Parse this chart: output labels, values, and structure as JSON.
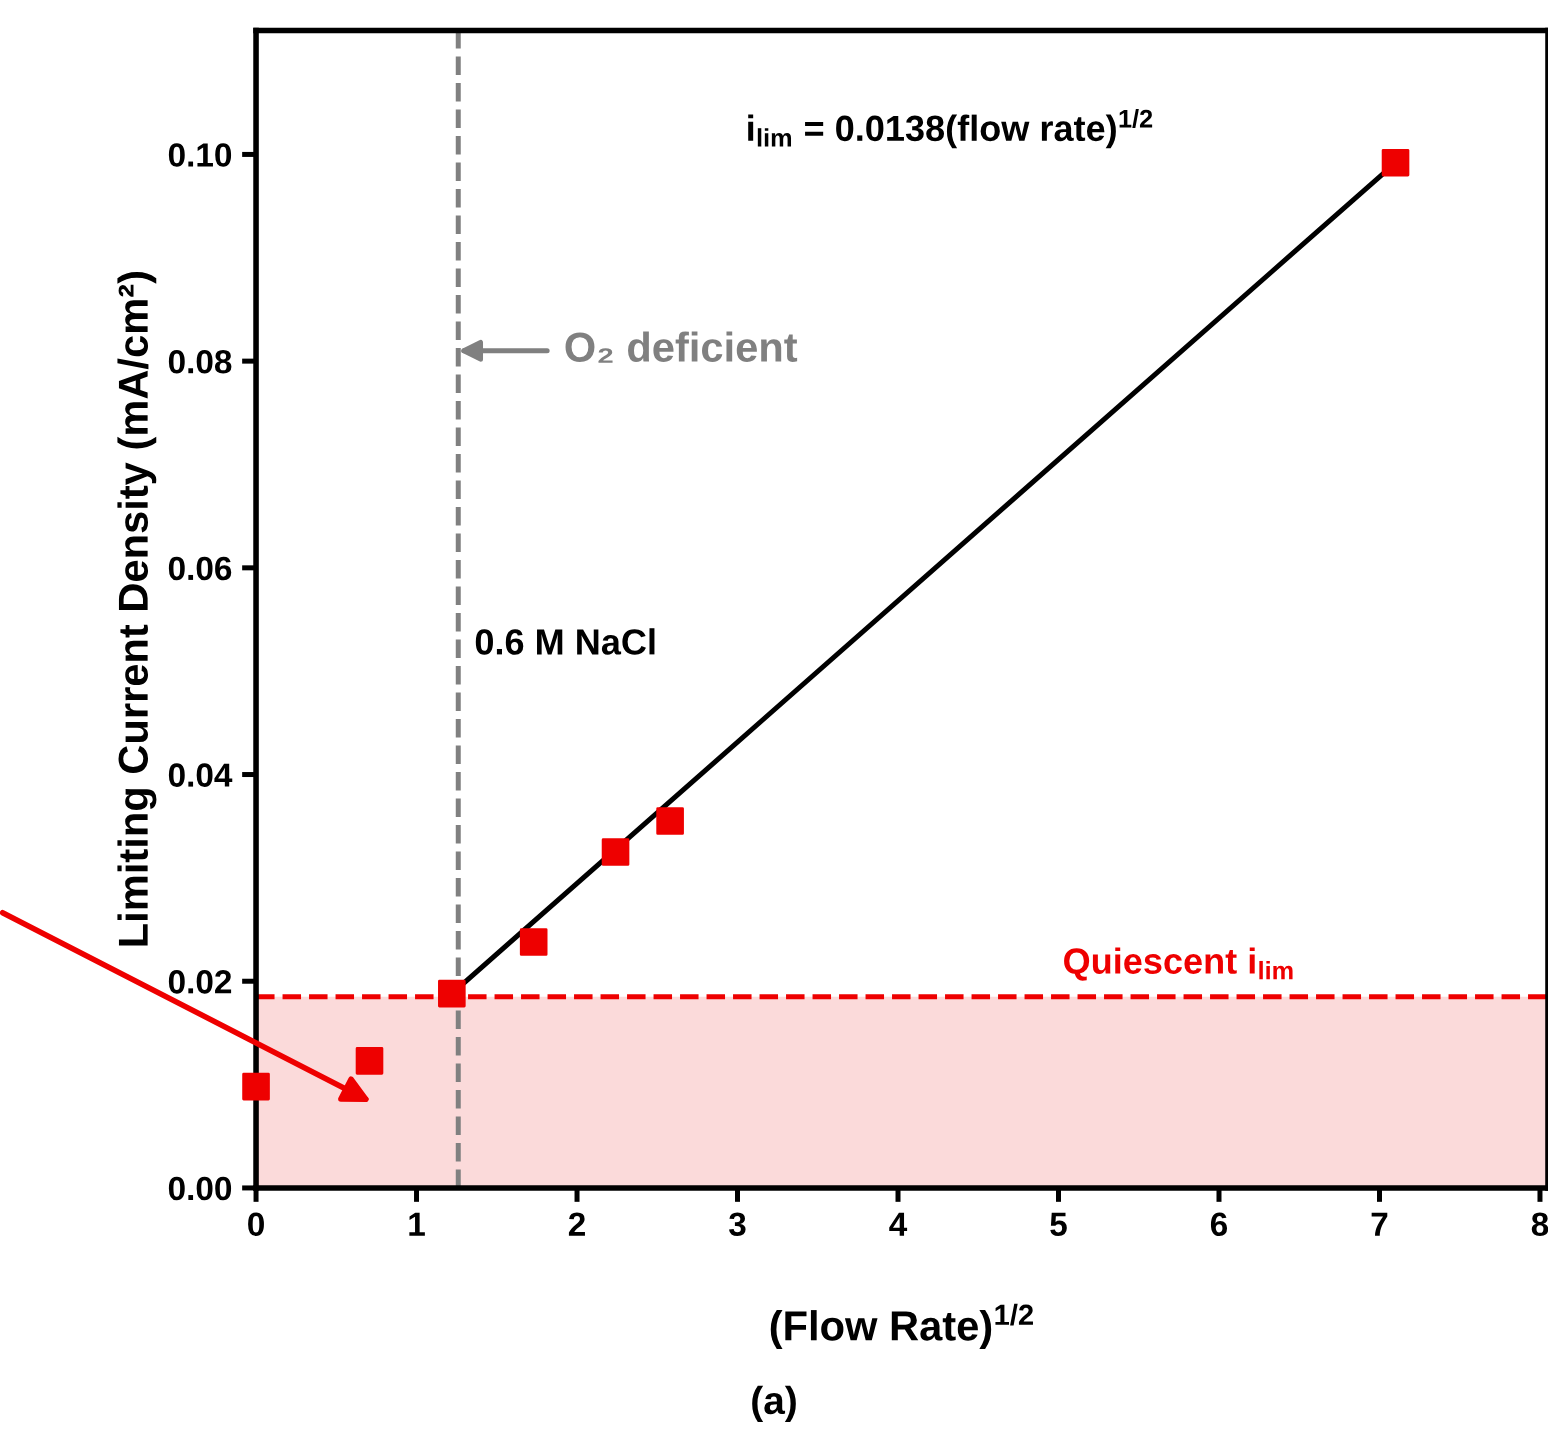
{
  "chart_data": {
    "type": "scatter",
    "xlabel": "(Flow Rate)$^{1/2}$",
    "ylabel": "Limiting Current Density (mA/cm²)",
    "x": [
      0,
      0.707,
      1.22,
      1.73,
      2.24,
      2.58,
      7.1
    ],
    "series": [
      {
        "color": "#ee0000",
        "marker": "square",
        "values": [
          0.0098,
          0.0123,
          0.0188,
          0.0238,
          0.0325,
          0.0355,
          0.0992
        ]
      },
      {
        "type": "line",
        "color": "#000000",
        "line_style": "solid",
        "marker": "none",
        "x": [
          1.22,
          7.1
        ],
        "values": [
          0.0188,
          0.0992
        ]
      }
    ],
    "xlim": [
      0,
      8.05
    ],
    "ylim": [
      0,
      0.112
    ],
    "xticks": [
      0,
      1,
      2,
      3,
      4,
      5,
      6,
      7,
      8
    ],
    "yticks": [
      {
        "value": 0,
        "label": "0.00"
      },
      {
        "value": 0.02,
        "label": "0.02"
      },
      {
        "value": 0.04,
        "label": "0.04"
      },
      {
        "value": 0.06,
        "label": "0.06"
      },
      {
        "value": 0.08,
        "label": "0.08"
      },
      {
        "value": 0.1,
        "label": "0.10"
      }
    ],
    "ref_lines": [
      {
        "axis": "y",
        "value": 0.0185,
        "label": "Quiescent i$_{lim}$",
        "color": "#ee0000",
        "line_style": "dashed"
      },
      {
        "axis": "x",
        "value": 1.26,
        "label": "O₂ deficient",
        "color": "#808080",
        "line_style": "dashed"
      }
    ],
    "bands": [
      {
        "axis": "y",
        "from": 0,
        "to": 0.0185,
        "color": "#fbdada"
      }
    ],
    "annotations": [
      "i$_{lim}$ = 0.0138(flow rate)$^{1/2}$",
      "0.6 M NaCl",
      "(a)"
    ],
    "grid": false,
    "legend": false
  }
}
